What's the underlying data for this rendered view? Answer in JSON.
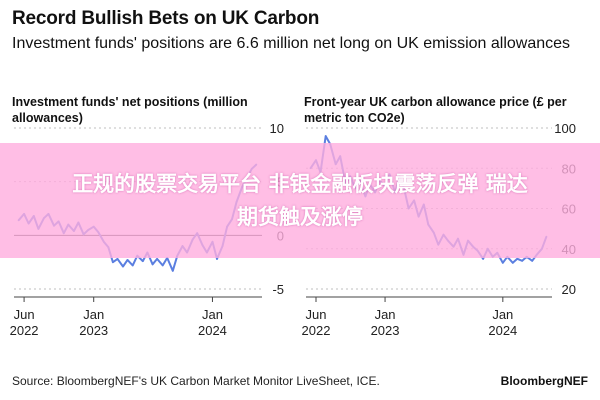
{
  "header": {
    "title": "Record Bullish Bets on UK Carbon",
    "subtitle": "Investment funds' positions are 6.6 million net long on UK emission allowances"
  },
  "overlay": {
    "line1": "正规的股票交易平台 非银金融板块震荡反弹 瑞达",
    "line2": "期货触及涨停"
  },
  "footer": {
    "source": "Source: BloombergNEF's UK Carbon Market Monitor LiveSheet, ICE.",
    "brand": "BloombergNEF"
  },
  "colors": {
    "series": "#5b7fe0",
    "zero_line": "#333333",
    "grid": "#bfbfbf"
  },
  "chart_data": [
    {
      "type": "line",
      "title": "Investment funds' net positions (million allowances)",
      "x_ticks": [
        "Jun\n2022",
        "Jan\n2023",
        "Jan\n2024"
      ],
      "x_tick_dates": [
        "2022-06-01",
        "2023-01-01",
        "2024-01-01"
      ],
      "xlim": [
        "2022-05-01",
        "2024-05-20"
      ],
      "y_ticks": [
        10,
        5,
        0,
        -5
      ],
      "ylim": [
        -5,
        10
      ],
      "zero_line": true,
      "series": [
        {
          "x": [
            "2022-05-15",
            "2022-06-01",
            "2022-06-15",
            "2022-07-01",
            "2022-07-15",
            "2022-08-01",
            "2022-08-15",
            "2022-09-01",
            "2022-09-15",
            "2022-10-01",
            "2022-10-15",
            "2022-11-01",
            "2022-11-15",
            "2022-12-01",
            "2022-12-15",
            "2023-01-01",
            "2023-01-15",
            "2023-02-01",
            "2023-02-15",
            "2023-03-01",
            "2023-03-15",
            "2023-04-01",
            "2023-04-15",
            "2023-05-01",
            "2023-05-15",
            "2023-06-01",
            "2023-06-15",
            "2023-07-01",
            "2023-07-15",
            "2023-08-01",
            "2023-08-15",
            "2023-09-01",
            "2023-09-15",
            "2023-10-01",
            "2023-10-15",
            "2023-11-01",
            "2023-11-15",
            "2023-12-01",
            "2023-12-15",
            "2024-01-01",
            "2024-01-15",
            "2024-02-01",
            "2024-02-15",
            "2024-03-01",
            "2024-03-15",
            "2024-04-01",
            "2024-04-15",
            "2024-05-01",
            "2024-05-15"
          ],
          "values": [
            1.4,
            2.0,
            1.1,
            1.8,
            0.6,
            1.6,
            2.0,
            0.9,
            1.3,
            0.2,
            1.0,
            0.4,
            1.2,
            0.1,
            0.5,
            0.8,
            0.3,
            -0.6,
            -1.1,
            -2.5,
            -2.2,
            -2.9,
            -2.3,
            -2.8,
            -1.9,
            -2.4,
            -1.6,
            -2.7,
            -2.2,
            -2.8,
            -2.1,
            -3.3,
            -1.9,
            -1.0,
            -1.6,
            -0.4,
            0.2,
            -0.9,
            -1.6,
            -0.6,
            -2.2,
            -1.0,
            0.8,
            1.5,
            3.1,
            4.5,
            5.3,
            6.2,
            6.6
          ]
        }
      ]
    },
    {
      "type": "line",
      "title": "Front-year UK carbon allowance price (£ per metric ton CO2e)",
      "x_ticks": [
        "Jun\n2022",
        "Jan\n2023",
        "Jan\n2024"
      ],
      "x_tick_dates": [
        "2022-06-01",
        "2023-01-01",
        "2024-01-01"
      ],
      "xlim": [
        "2022-05-01",
        "2024-05-20"
      ],
      "y_ticks": [
        100,
        80,
        60,
        40,
        20
      ],
      "ylim": [
        20,
        100
      ],
      "series": [
        {
          "x": [
            "2022-05-15",
            "2022-06-01",
            "2022-06-15",
            "2022-07-01",
            "2022-07-15",
            "2022-08-01",
            "2022-08-15",
            "2022-09-01",
            "2022-09-15",
            "2022-10-01",
            "2022-10-15",
            "2022-11-01",
            "2022-11-15",
            "2022-12-01",
            "2022-12-15",
            "2023-01-01",
            "2023-01-15",
            "2023-02-01",
            "2023-02-15",
            "2023-03-01",
            "2023-03-15",
            "2023-04-01",
            "2023-04-15",
            "2023-05-01",
            "2023-05-15",
            "2023-06-01",
            "2023-06-15",
            "2023-07-01",
            "2023-07-15",
            "2023-08-01",
            "2023-08-15",
            "2023-09-01",
            "2023-09-15",
            "2023-10-01",
            "2023-10-15",
            "2023-11-01",
            "2023-11-15",
            "2023-12-01",
            "2023-12-15",
            "2024-01-01",
            "2024-01-15",
            "2024-02-01",
            "2024-02-15",
            "2024-03-01",
            "2024-03-15",
            "2024-04-01",
            "2024-04-15",
            "2024-05-01",
            "2024-05-15"
          ],
          "values": [
            80,
            84,
            78,
            96,
            92,
            82,
            86,
            72,
            76,
            70,
            74,
            66,
            72,
            68,
            74,
            71,
            77,
            68,
            76,
            70,
            60,
            64,
            56,
            62,
            52,
            48,
            42,
            47,
            44,
            41,
            45,
            37,
            44,
            41,
            39,
            35,
            40,
            36,
            38,
            33,
            36,
            33,
            35,
            34,
            36,
            34,
            37,
            40,
            46
          ]
        }
      ]
    }
  ]
}
